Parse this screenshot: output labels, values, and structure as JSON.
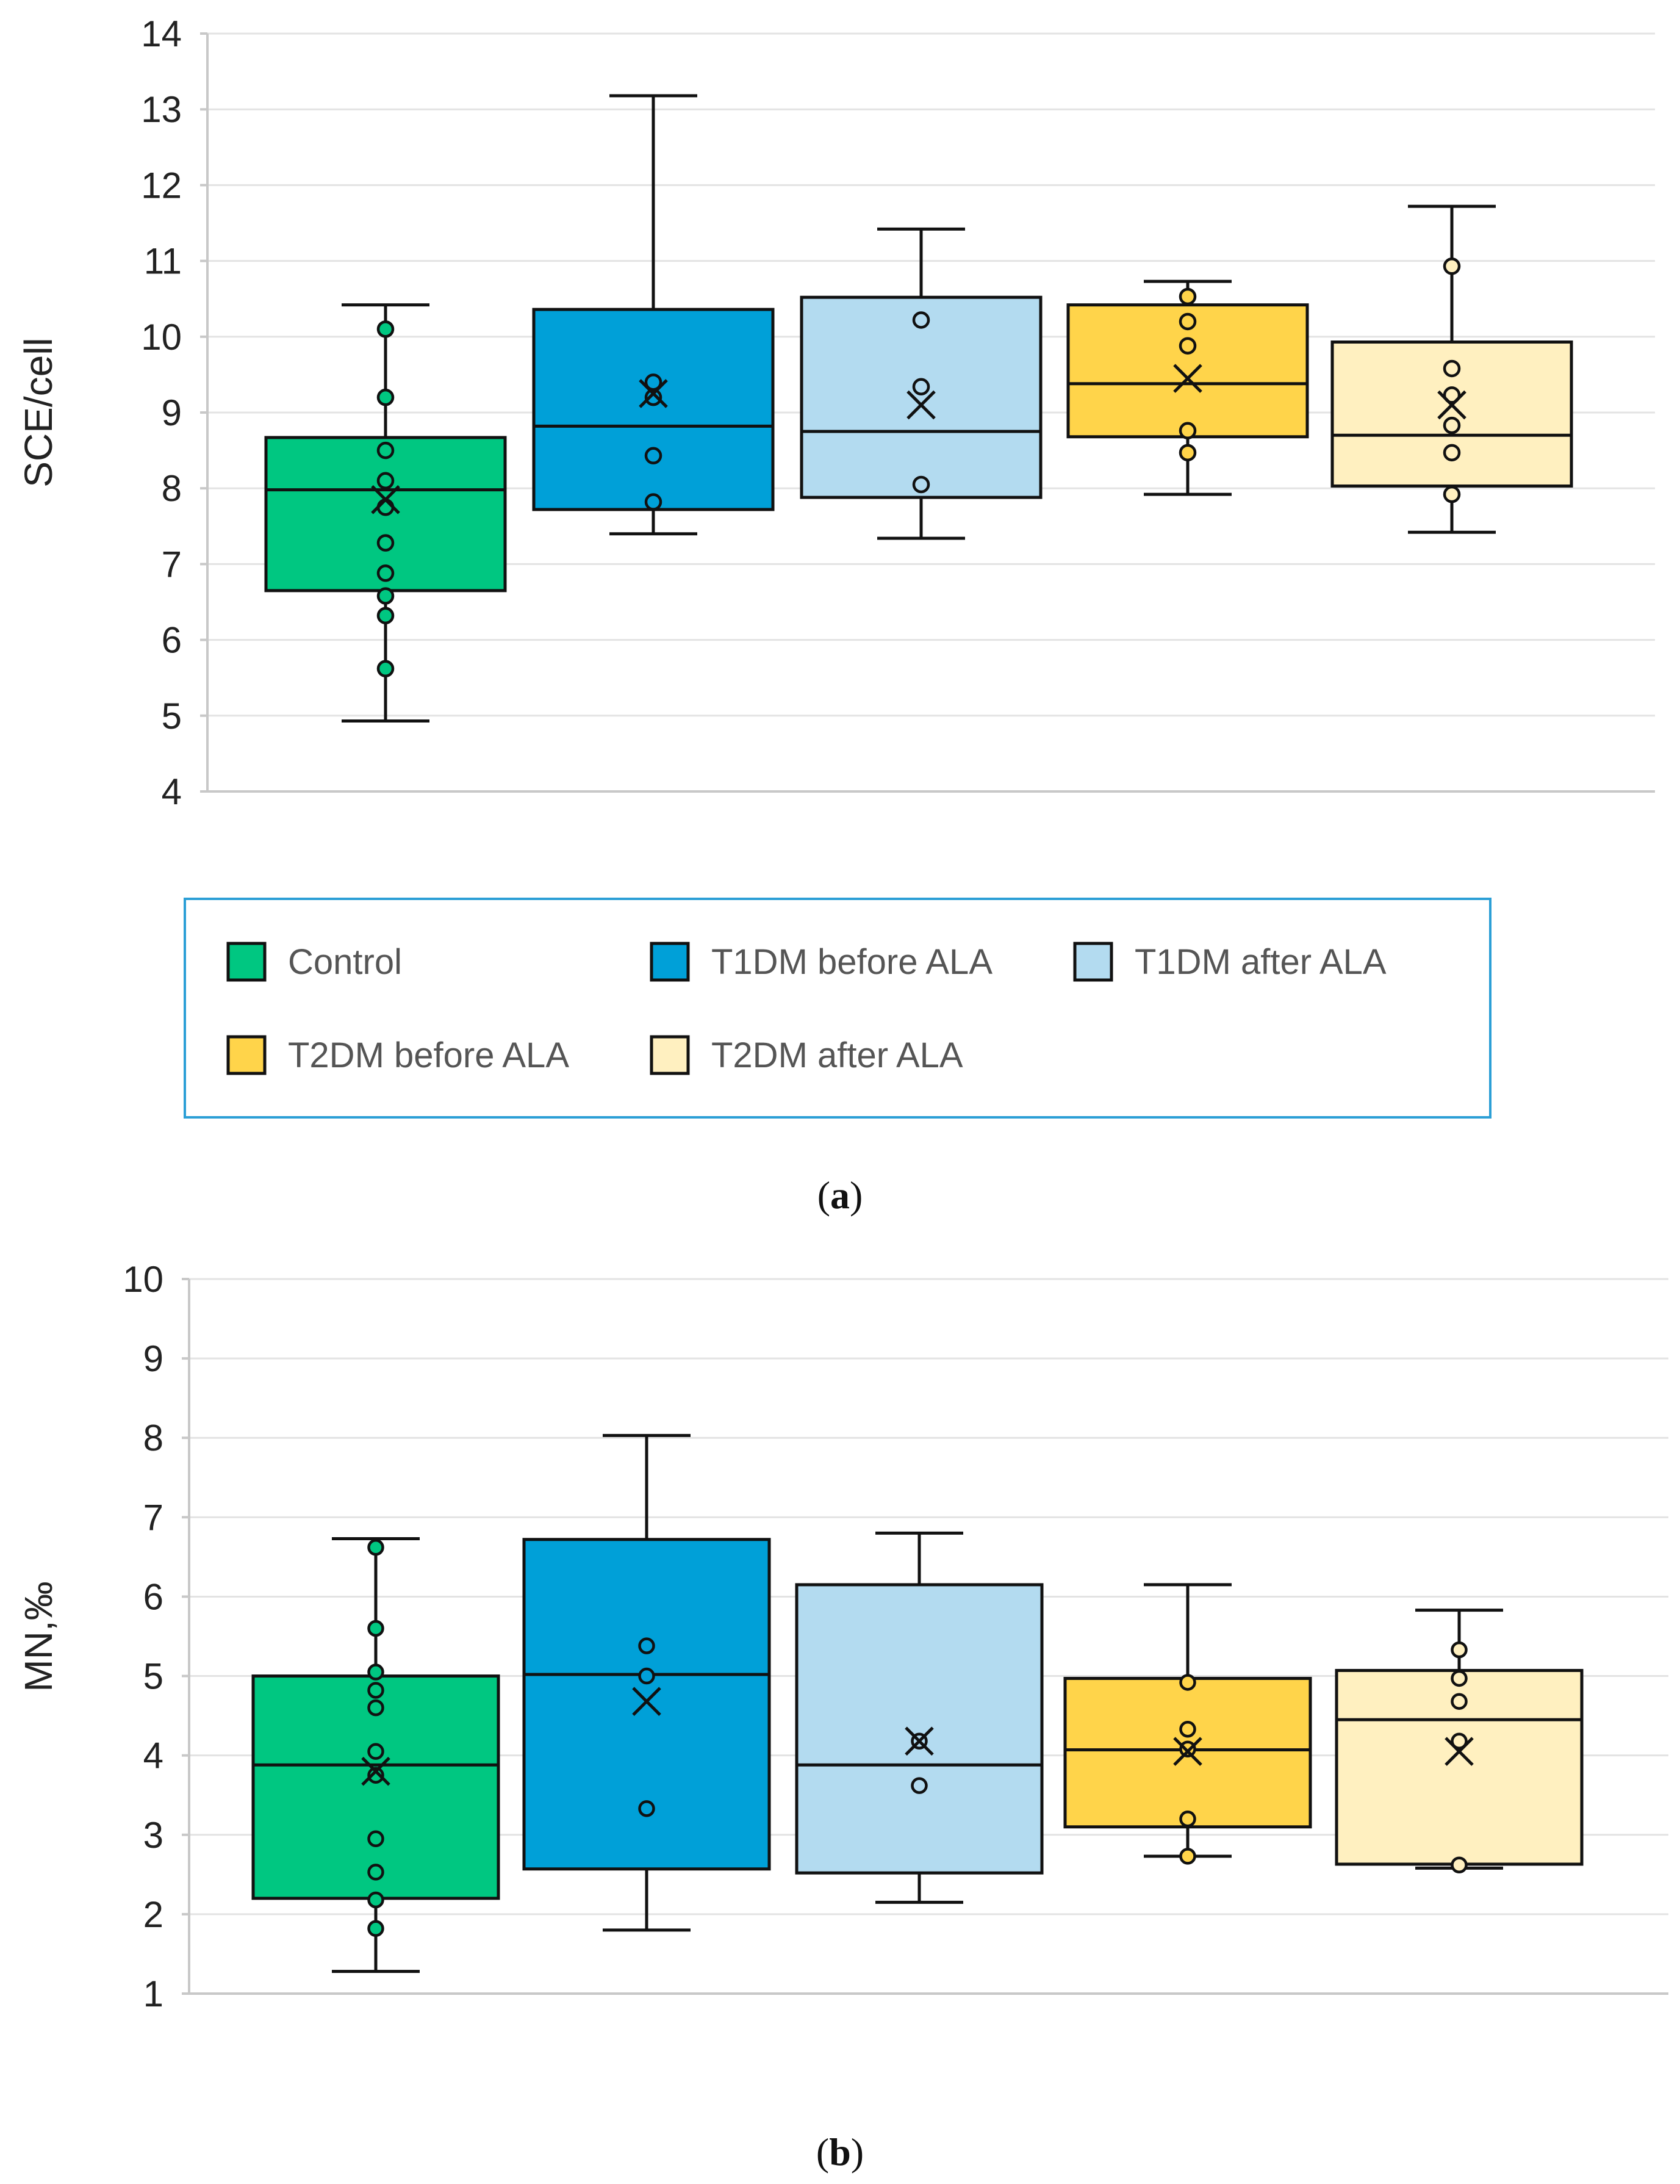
{
  "legend": {
    "items": [
      {
        "label": "Control",
        "color": "#00c781"
      },
      {
        "label": "T1DM before ALA",
        "color": "#00a0d8"
      },
      {
        "label": "T1DM after ALA",
        "color": "#b3dbf0"
      },
      {
        "label": "T2DM before ALA",
        "color": "#ffd44a"
      },
      {
        "label": "T2DM after ALA",
        "color": "#fff0c0"
      }
    ],
    "border_color": "#2c9fd6"
  },
  "chart_data": [
    {
      "type": "boxplot",
      "panel": "a",
      "caption": "(a)",
      "caption_letter": "a",
      "ylabel": "SCE/cell",
      "xlabel": "",
      "ylim": [
        4,
        14
      ],
      "yticks": [
        4,
        5,
        6,
        7,
        8,
        9,
        10,
        11,
        12,
        13,
        14
      ],
      "grid": true,
      "series": [
        {
          "name": "Control",
          "whisker_low": 4.93,
          "q1": 6.65,
          "median": 7.98,
          "q3": 8.67,
          "whisker_high": 10.42,
          "mean": 7.85,
          "points": [
            10.1,
            9.2,
            8.5,
            8.1,
            7.75,
            7.28,
            6.88,
            6.58,
            6.32,
            5.62
          ]
        },
        {
          "name": "T1DM before ALA",
          "whisker_low": 7.4,
          "q1": 7.72,
          "median": 8.82,
          "q3": 10.36,
          "whisker_high": 13.18,
          "mean": 9.25,
          "points": [
            9.4,
            9.2,
            8.43,
            7.82
          ]
        },
        {
          "name": "T1DM after ALA",
          "whisker_low": 7.34,
          "q1": 7.88,
          "median": 8.75,
          "q3": 10.52,
          "whisker_high": 11.42,
          "mean": 9.1,
          "points": [
            10.22,
            9.34,
            8.05
          ]
        },
        {
          "name": "T2DM before ALA",
          "whisker_low": 7.92,
          "q1": 8.68,
          "median": 9.38,
          "q3": 10.42,
          "whisker_high": 10.73,
          "mean": 9.45,
          "points": [
            10.53,
            10.2,
            9.88,
            8.76,
            8.47
          ]
        },
        {
          "name": "T2DM after ALA",
          "whisker_low": 7.42,
          "q1": 8.03,
          "median": 8.7,
          "q3": 9.93,
          "whisker_high": 11.72,
          "mean": 9.1,
          "points": [
            10.93,
            9.58,
            9.23,
            8.83,
            8.47,
            7.92
          ]
        }
      ]
    },
    {
      "type": "boxplot",
      "panel": "b",
      "caption": "(b)",
      "caption_letter": "b",
      "ylabel": "MN,‰",
      "xlabel": "",
      "ylim": [
        1,
        10
      ],
      "yticks": [
        1,
        2,
        3,
        4,
        5,
        6,
        7,
        8,
        9,
        10
      ],
      "grid": true,
      "series": [
        {
          "name": "Control",
          "whisker_low": 1.28,
          "q1": 2.2,
          "median": 3.88,
          "q3": 5.0,
          "whisker_high": 6.73,
          "mean": 3.8,
          "points": [
            6.62,
            5.6,
            5.05,
            4.82,
            4.6,
            4.05,
            3.75,
            2.95,
            2.53,
            2.18,
            1.82
          ]
        },
        {
          "name": "T1DM before ALA",
          "whisker_low": 1.8,
          "q1": 2.57,
          "median": 5.02,
          "q3": 6.72,
          "whisker_high": 8.03,
          "mean": 4.68,
          "points": [
            5.38,
            5.0,
            3.33
          ]
        },
        {
          "name": "T1DM after ALA",
          "whisker_low": 2.15,
          "q1": 2.52,
          "median": 3.88,
          "q3": 6.15,
          "whisker_high": 6.8,
          "mean": 4.18,
          "points": [
            4.18,
            3.62
          ]
        },
        {
          "name": "T2DM before ALA",
          "whisker_low": 2.73,
          "q1": 3.1,
          "median": 4.07,
          "q3": 4.97,
          "whisker_high": 6.15,
          "mean": 4.05,
          "points": [
            4.92,
            4.33,
            4.08,
            3.2,
            2.73
          ]
        },
        {
          "name": "T2DM after ALA",
          "whisker_low": 2.58,
          "q1": 2.63,
          "median": 4.45,
          "q3": 5.07,
          "whisker_high": 5.83,
          "mean": 4.05,
          "points": [
            5.33,
            4.97,
            4.68,
            4.18,
            2.62
          ]
        }
      ]
    }
  ]
}
